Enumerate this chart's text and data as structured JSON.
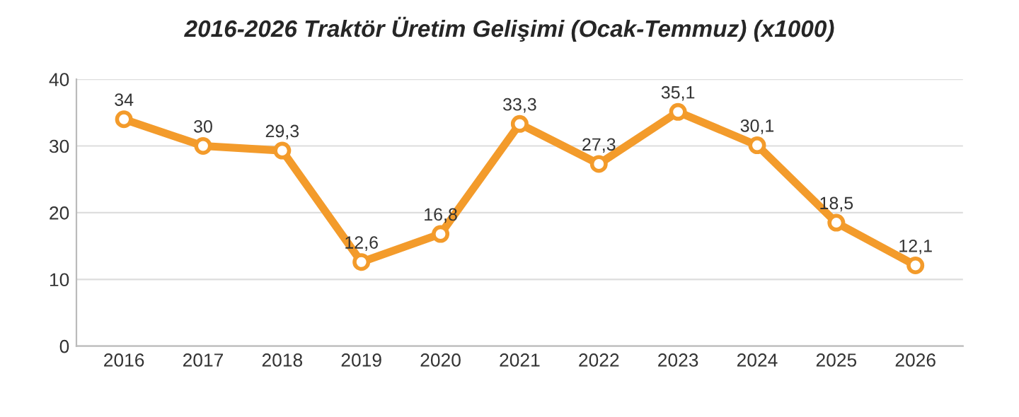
{
  "chart_data": {
    "type": "line",
    "title": "2016-2026 Traktör Üretim Gelişimi (Ocak-Temmuz) (x1000)",
    "categories": [
      "2016",
      "2017",
      "2018",
      "2019",
      "2020",
      "2021",
      "2022",
      "2023",
      "2024",
      "2025",
      "2026"
    ],
    "values": [
      34,
      30,
      29.3,
      12.6,
      16.8,
      33.3,
      27.3,
      35.1,
      30.1,
      18.5,
      12.1
    ],
    "value_labels": [
      "34",
      "30",
      "29,3",
      "12,6",
      "16,8",
      "33,3",
      "27,3",
      "35,1",
      "30,1",
      "18,5",
      "12,1"
    ],
    "color": "#f39b2b",
    "ylim": [
      0,
      40
    ],
    "yticks": [
      0,
      10,
      20,
      30,
      40
    ],
    "grid": "y",
    "marker": "circle",
    "line_style": "solid",
    "legend": false
  }
}
